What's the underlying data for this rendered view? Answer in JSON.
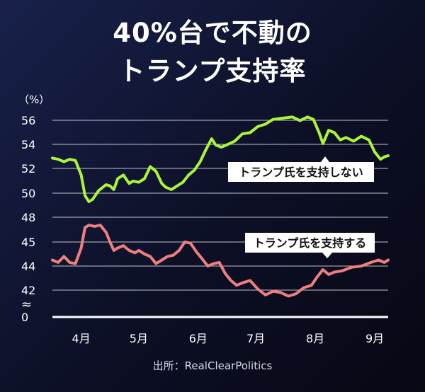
{
  "title_line1": "40%台で不動の",
  "title_line2": "トランプ支持率",
  "source": "出所：RealClearPolitics",
  "colors": {
    "support": "#ef7f7f",
    "oppose": "#aaf43a",
    "grid": "#ffffff"
  },
  "chart_data": {
    "type": "line",
    "title": "40%台で不動のトランプ支持率",
    "ylabel": "（%）",
    "yticks": [
      "56",
      "54",
      "52",
      "50",
      "48",
      "45",
      "44",
      "42",
      "0"
    ],
    "axis_break": "≈",
    "xticks": [
      "4月",
      "5月",
      "6月",
      "7月",
      "8月",
      "9月"
    ],
    "x_range": [
      "03-17",
      "09-08"
    ],
    "grid": true,
    "series": [
      {
        "name": "トランプ氏を支持しない",
        "label": "トランプ氏を支持しない",
        "color": "#aaf43a",
        "points": [
          [
            "03-17",
            52.9
          ],
          [
            "03-20",
            52.8
          ],
          [
            "03-23",
            52.6
          ],
          [
            "03-26",
            52.8
          ],
          [
            "03-29",
            52.7
          ],
          [
            "04-01",
            51.5
          ],
          [
            "04-03",
            49.8
          ],
          [
            "04-05",
            49.3
          ],
          [
            "04-07",
            49.5
          ],
          [
            "04-10",
            50.2
          ],
          [
            "04-14",
            50.7
          ],
          [
            "04-16",
            50.6
          ],
          [
            "04-18",
            50.3
          ],
          [
            "04-20",
            51.2
          ],
          [
            "04-23",
            51.5
          ],
          [
            "04-26",
            50.8
          ],
          [
            "04-28",
            51.0
          ],
          [
            "05-01",
            50.9
          ],
          [
            "05-04",
            51.2
          ],
          [
            "05-07",
            52.2
          ],
          [
            "05-10",
            51.8
          ],
          [
            "05-13",
            50.8
          ],
          [
            "05-15",
            50.5
          ],
          [
            "05-18",
            50.3
          ],
          [
            "05-21",
            50.6
          ],
          [
            "05-24",
            50.9
          ],
          [
            "05-27",
            51.5
          ],
          [
            "05-30",
            51.9
          ],
          [
            "06-02",
            52.6
          ],
          [
            "06-05",
            53.6
          ],
          [
            "06-08",
            54.5
          ],
          [
            "06-10",
            54.0
          ],
          [
            "06-13",
            53.8
          ],
          [
            "06-16",
            54.0
          ],
          [
            "06-20",
            54.3
          ],
          [
            "06-24",
            54.9
          ],
          [
            "06-28",
            55.0
          ],
          [
            "07-02",
            55.5
          ],
          [
            "07-06",
            55.7
          ],
          [
            "07-10",
            56.1
          ],
          [
            "07-15",
            56.2
          ],
          [
            "07-20",
            56.3
          ],
          [
            "07-24",
            56.0
          ],
          [
            "07-28",
            56.3
          ],
          [
            "07-31",
            56.1
          ],
          [
            "08-03",
            55.0
          ],
          [
            "08-05",
            54.1
          ],
          [
            "08-08",
            55.2
          ],
          [
            "08-11",
            55.0
          ],
          [
            "08-14",
            54.4
          ],
          [
            "08-17",
            54.6
          ],
          [
            "08-21",
            54.3
          ],
          [
            "08-25",
            54.7
          ],
          [
            "08-29",
            54.4
          ],
          [
            "09-01",
            53.4
          ],
          [
            "09-04",
            52.8
          ],
          [
            "09-06",
            53.0
          ],
          [
            "09-08",
            53.1
          ]
        ]
      },
      {
        "name": "トランプ氏を支持する",
        "label": "トランプ氏を支持する",
        "color": "#ef7f7f",
        "points": [
          [
            "03-17",
            44.5
          ],
          [
            "03-20",
            44.3
          ],
          [
            "03-23",
            44.8
          ],
          [
            "03-26",
            44.3
          ],
          [
            "03-29",
            44.2
          ],
          [
            "04-01",
            45.5
          ],
          [
            "04-03",
            47.2
          ],
          [
            "04-05",
            47.4
          ],
          [
            "04-08",
            47.3
          ],
          [
            "04-11",
            47.4
          ],
          [
            "04-14",
            46.8
          ],
          [
            "04-16",
            46.0
          ],
          [
            "04-18",
            45.3
          ],
          [
            "04-20",
            45.5
          ],
          [
            "04-23",
            45.7
          ],
          [
            "04-26",
            45.3
          ],
          [
            "04-29",
            45.1
          ],
          [
            "05-01",
            45.3
          ],
          [
            "05-04",
            45.0
          ],
          [
            "05-07",
            44.8
          ],
          [
            "05-10",
            44.2
          ],
          [
            "05-13",
            44.5
          ],
          [
            "05-16",
            44.8
          ],
          [
            "05-19",
            44.9
          ],
          [
            "05-22",
            45.3
          ],
          [
            "05-25",
            46.0
          ],
          [
            "05-28",
            45.9
          ],
          [
            "05-31",
            45.2
          ],
          [
            "06-03",
            44.6
          ],
          [
            "06-06",
            44.0
          ],
          [
            "06-09",
            44.2
          ],
          [
            "06-12",
            44.3
          ],
          [
            "06-15",
            43.4
          ],
          [
            "06-18",
            42.8
          ],
          [
            "06-21",
            42.4
          ],
          [
            "06-24",
            42.6
          ],
          [
            "06-28",
            42.8
          ],
          [
            "07-02",
            42.1
          ],
          [
            "07-06",
            41.6
          ],
          [
            "07-10",
            41.9
          ],
          [
            "07-14",
            41.8
          ],
          [
            "07-18",
            41.5
          ],
          [
            "07-22",
            41.7
          ],
          [
            "07-26",
            42.2
          ],
          [
            "07-30",
            42.4
          ],
          [
            "08-02",
            43.1
          ],
          [
            "08-05",
            43.7
          ],
          [
            "08-08",
            43.3
          ],
          [
            "08-11",
            43.5
          ],
          [
            "08-15",
            43.6
          ],
          [
            "08-20",
            43.9
          ],
          [
            "08-25",
            44.0
          ],
          [
            "08-30",
            44.3
          ],
          [
            "09-03",
            44.5
          ],
          [
            "09-06",
            44.3
          ],
          [
            "09-08",
            44.5
          ]
        ]
      }
    ]
  }
}
